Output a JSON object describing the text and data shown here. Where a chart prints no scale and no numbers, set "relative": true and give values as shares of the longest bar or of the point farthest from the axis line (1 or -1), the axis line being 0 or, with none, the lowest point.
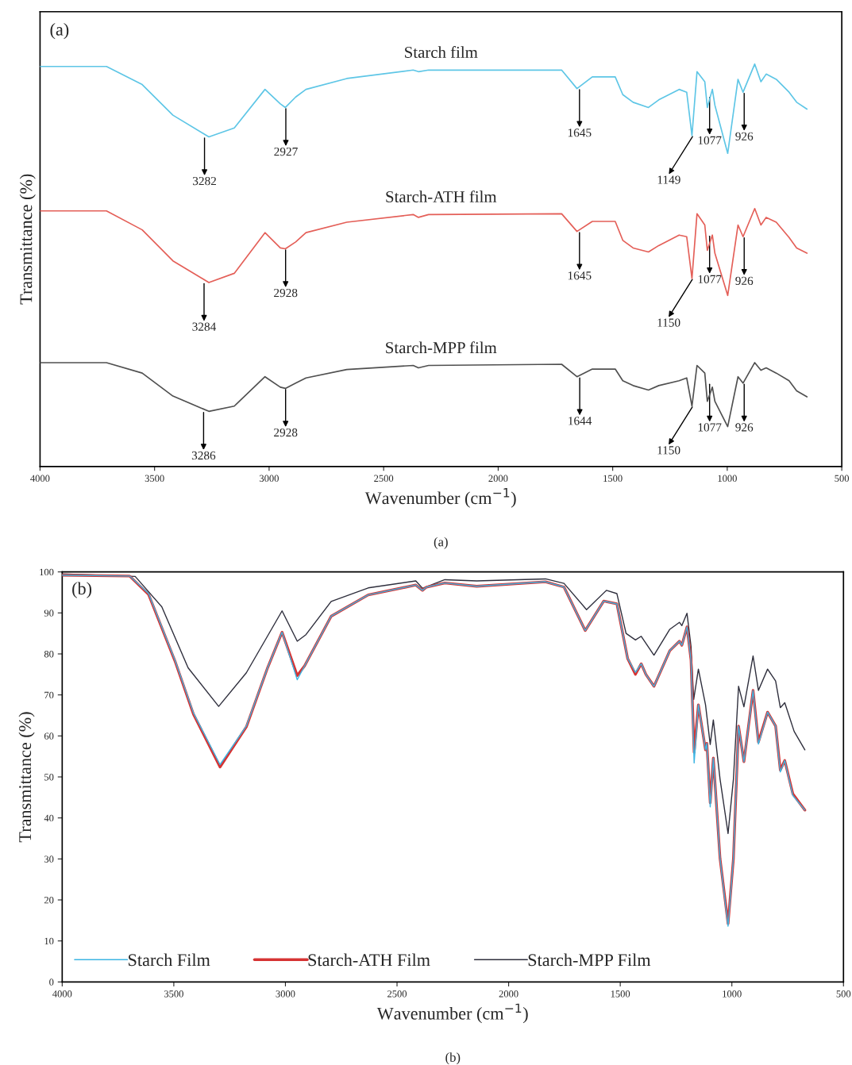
{
  "chart_data": [
    {
      "type": "line",
      "relative": true,
      "xlabel": "Wavenumber (cm$^{−1}$)",
      "ylabel": "Transmittance (%)",
      "xlim": [
        4000,
        500
      ],
      "xticks": [
        4000,
        3500,
        3000,
        2500,
        2000,
        1500,
        1000,
        500
      ],
      "legend": false,
      "grid": false,
      "line_style": "solid",
      "x": [
        4000,
        3710,
        3554,
        3420,
        3263,
        3152,
        3018,
        2951,
        2929,
        2884,
        2839,
        2661,
        2371,
        2348,
        2304,
        1723,
        1656,
        1589,
        1489,
        1456,
        1411,
        1344,
        1299,
        1210,
        1177,
        1154,
        1132,
        1098,
        1087,
        1065,
        1054,
        998,
        953,
        931,
        880,
        853,
        830,
        786,
        730,
        697,
        652
      ],
      "series": [
        {
          "name": "Starch film",
          "color": "#5ec6e6",
          "values": [
            0.994,
            0.994,
            0.949,
            0.873,
            0.819,
            0.841,
            0.937,
            0.901,
            0.892,
            0.918,
            0.937,
            0.964,
            0.985,
            0.981,
            0.985,
            0.985,
            0.939,
            0.968,
            0.968,
            0.924,
            0.905,
            0.892,
            0.911,
            0.937,
            0.93,
            0.822,
            0.981,
            0.956,
            0.892,
            0.937,
            0.898,
            0.778,
            0.962,
            0.93,
            1.0,
            0.956,
            0.975,
            0.962,
            0.93,
            0.905,
            0.888
          ]
        },
        {
          "name": "Starch-ATH film",
          "color": "#e45f58",
          "values": [
            0.635,
            0.635,
            0.588,
            0.511,
            0.457,
            0.48,
            0.581,
            0.543,
            0.541,
            0.558,
            0.581,
            0.607,
            0.626,
            0.619,
            0.626,
            0.628,
            0.584,
            0.609,
            0.609,
            0.562,
            0.543,
            0.533,
            0.549,
            0.575,
            0.571,
            0.467,
            0.628,
            0.6,
            0.537,
            0.575,
            0.53,
            0.425,
            0.6,
            0.571,
            0.641,
            0.6,
            0.619,
            0.607,
            0.569,
            0.543,
            0.53
          ]
        },
        {
          "name": "Starch-MPP film",
          "color": "#505050",
          "values": [
            0.258,
            0.258,
            0.232,
            0.175,
            0.137,
            0.15,
            0.223,
            0.197,
            0.194,
            0.207,
            0.22,
            0.241,
            0.251,
            0.245,
            0.251,
            0.254,
            0.223,
            0.242,
            0.242,
            0.213,
            0.201,
            0.19,
            0.201,
            0.213,
            0.22,
            0.15,
            0.251,
            0.232,
            0.162,
            0.197,
            0.162,
            0.099,
            0.223,
            0.207,
            0.258,
            0.239,
            0.245,
            0.232,
            0.213,
            0.188,
            0.173
          ]
        }
      ],
      "annotations": [
        "(a)",
        "(a)",
        {
          "text": "3282",
          "x": 3282,
          "y": 0.819
        },
        {
          "text": "2927",
          "x": 2927,
          "y": 0.892
        },
        {
          "text": "1645",
          "x": 1645,
          "y": 0.939
        },
        {
          "text": "1149",
          "x": 1149,
          "y": 0.822
        },
        {
          "text": "1077",
          "x": 1077,
          "y": 0.92
        },
        {
          "text": "926",
          "x": 926,
          "y": 0.93
        },
        {
          "text": "3284",
          "x": 3284,
          "y": 0.457
        },
        {
          "text": "2928",
          "x": 2928,
          "y": 0.541
        },
        {
          "text": "1645",
          "x": 1645,
          "y": 0.584
        },
        {
          "text": "1150",
          "x": 1150,
          "y": 0.467
        },
        {
          "text": "1077",
          "x": 1077,
          "y": 0.575
        },
        {
          "text": "926",
          "x": 926,
          "y": 0.571
        },
        {
          "text": "3286",
          "x": 3286,
          "y": 0.137
        },
        {
          "text": "2928",
          "x": 2928,
          "y": 0.194
        },
        {
          "text": "1644",
          "x": 1644,
          "y": 0.223
        },
        {
          "text": "1150",
          "x": 1150,
          "y": 0.15
        },
        {
          "text": "1077",
          "x": 1077,
          "y": 0.207
        },
        {
          "text": "926",
          "x": 926,
          "y": 0.207
        }
      ]
    },
    {
      "type": "line",
      "xlabel": "Wavenumber (cm$^{−1}$)",
      "ylabel": "Transmittance (%)",
      "xlim": [
        4000,
        500
      ],
      "xticks": [
        4000,
        3500,
        3000,
        2500,
        2000,
        1500,
        1000,
        500
      ],
      "ylim": [
        0,
        100
      ],
      "yticks": [
        0,
        10,
        20,
        30,
        40,
        50,
        60,
        70,
        80,
        90,
        100
      ],
      "legend": "bottom",
      "grid": false,
      "line_style": "solid",
      "x": [
        4000,
        3698,
        3613,
        3495,
        3412,
        3293,
        3175,
        3080,
        3015,
        2947,
        2914,
        2795,
        2629,
        2416,
        2386,
        2368,
        2286,
        2143,
        1835,
        1752,
        1657,
        1574,
        1515,
        1467,
        1432,
        1406,
        1385,
        1349,
        1278,
        1235,
        1224,
        1201,
        1183,
        1169,
        1150,
        1118,
        1112,
        1097,
        1083,
        1053,
        1017,
        993,
        970,
        946,
        905,
        881,
        840,
        804,
        783,
        763,
        727,
        673
      ],
      "series": [
        {
          "name": "Starch Film",
          "color": "#3db5e3",
          "values": [
            99.2,
            99.0,
            94.7,
            78.5,
            65.6,
            53.0,
            62.4,
            76.6,
            85.3,
            73.7,
            77.1,
            89.2,
            94.4,
            96.8,
            95.5,
            96.3,
            97.3,
            96.5,
            97.6,
            96.3,
            85.7,
            92.9,
            92.2,
            78.9,
            75.5,
            77.6,
            75.0,
            72.1,
            80.8,
            83.1,
            82.1,
            86.6,
            78.5,
            53.4,
            67.6,
            56.6,
            58.2,
            42.7,
            54.6,
            30.1,
            13.6,
            30.1,
            62.4,
            53.7,
            71.1,
            58.0,
            65.8,
            62.4,
            51.2,
            54.0,
            45.5,
            41.9
          ]
        },
        {
          "name": "Starch-ATH Film",
          "color": "#d63333",
          "values": [
            99.2,
            99.0,
            94.5,
            78.3,
            65.3,
            52.4,
            62.2,
            76.6,
            85.3,
            74.7,
            77.1,
            89.2,
            94.4,
            96.8,
            95.5,
            96.3,
            97.3,
            96.5,
            97.6,
            96.3,
            85.7,
            92.9,
            92.2,
            78.9,
            75.0,
            77.6,
            75.0,
            72.1,
            80.8,
            83.1,
            82.1,
            86.6,
            78.5,
            56.0,
            67.6,
            56.6,
            58.2,
            43.7,
            54.6,
            30.1,
            14.2,
            30.1,
            62.4,
            53.7,
            71.1,
            58.5,
            65.8,
            62.4,
            51.7,
            54.0,
            45.9,
            41.9
          ]
        },
        {
          "name": "Starch-MPP Film",
          "color": "#2e2e3c",
          "x": [
            4000,
            3673,
            3554,
            3436,
            3299,
            3175,
            3015,
            2947,
            2908,
            2795,
            2629,
            2416,
            2386,
            2286,
            2143,
            1835,
            1752,
            1651,
            1562,
            1515,
            1474,
            1432,
            1406,
            1349,
            1278,
            1235,
            1224,
            1201,
            1183,
            1171,
            1150,
            1118,
            1097,
            1083,
            1053,
            1017,
            993,
            970,
            946,
            905,
            881,
            840,
            804,
            783,
            763,
            721,
            673
          ],
          "values": [
            99.5,
            98.9,
            91.5,
            76.6,
            67.2,
            75.4,
            90.5,
            83.1,
            84.7,
            92.8,
            96.1,
            97.8,
            96.0,
            98.1,
            97.8,
            98.3,
            97.2,
            90.8,
            95.5,
            94.7,
            85.0,
            83.4,
            84.3,
            79.7,
            86.0,
            87.7,
            86.9,
            89.9,
            81.8,
            68.9,
            76.3,
            67.6,
            57.9,
            63.9,
            49.5,
            36.2,
            49.5,
            72.1,
            67.1,
            79.5,
            71.1,
            76.3,
            73.4,
            66.9,
            68.1,
            61.1,
            56.6
          ]
        }
      ],
      "annotations": [
        "(b)",
        "(b)"
      ]
    }
  ]
}
